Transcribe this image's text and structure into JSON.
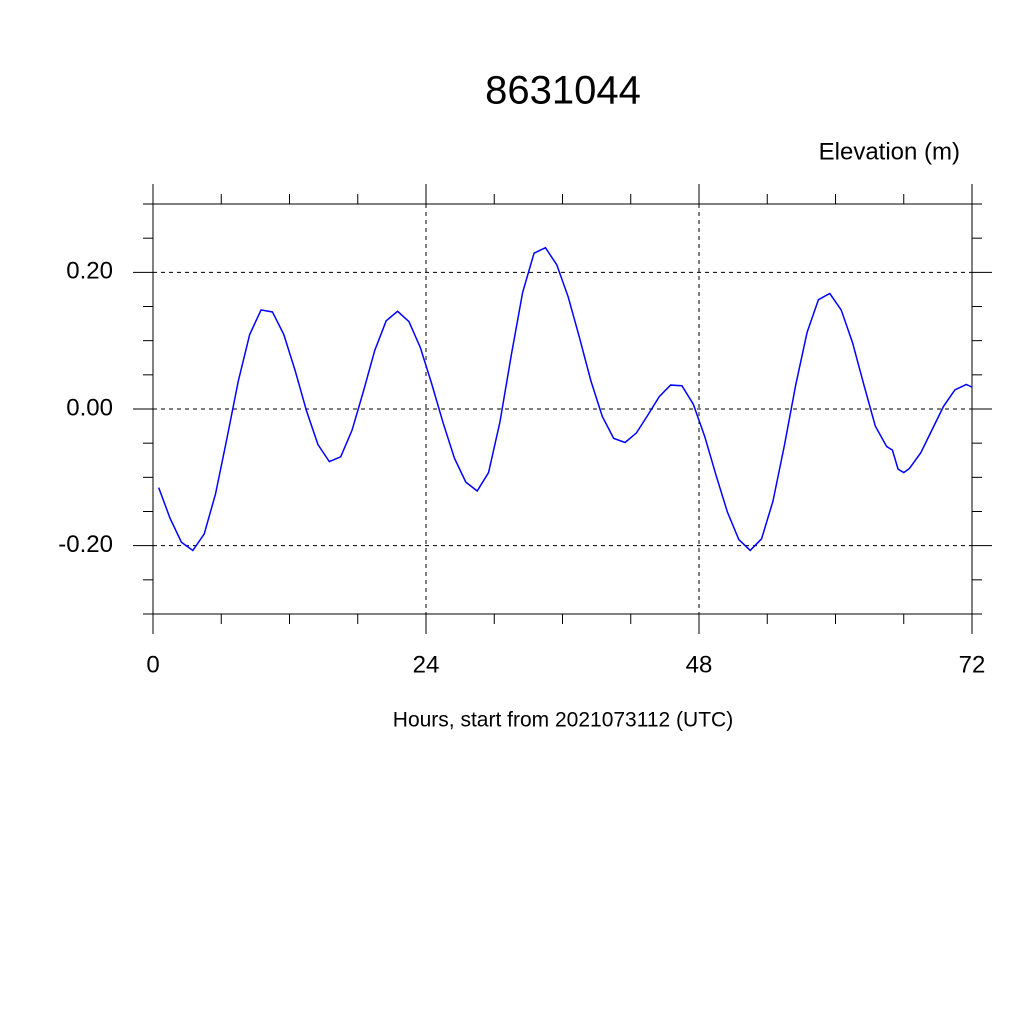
{
  "chart_data": {
    "type": "line",
    "title": "8631044",
    "ylabel": "Elevation (m)",
    "xlabel": "Hours, start from 2021073112 (UTC)",
    "x": [
      0.5,
      1.5,
      2.5,
      3.5,
      4.5,
      5.5,
      6.5,
      7.5,
      8.5,
      9.5,
      10.5,
      11.5,
      12.5,
      13.5,
      14.5,
      15.5,
      16.5,
      17.5,
      18.5,
      19.5,
      20.5,
      21.5,
      22.5,
      23.5,
      24.5,
      25.5,
      26.5,
      27.5,
      28.5,
      29.5,
      30.5,
      31.5,
      32.5,
      33.5,
      34.5,
      35.5,
      36.5,
      37.5,
      38.5,
      39.5,
      40.5,
      41.5,
      42.5,
      43.5,
      44.5,
      45.5,
      46.5,
      47.5,
      48.5,
      49.5,
      50.5,
      51.5,
      52.5,
      53.5,
      54.5,
      55.5,
      56.5,
      57.5,
      58.5,
      59.5,
      60.5,
      61.5,
      62.5,
      63.5,
      64.5,
      65,
      65.5,
      66,
      66.5,
      67.5,
      68.5,
      69.5,
      70.5,
      71.5,
      72
    ],
    "series": [
      {
        "name": "Elevation",
        "color": "#0000ff",
        "values": [
          -0.115,
          -0.16,
          -0.195,
          -0.207,
          -0.183,
          -0.124,
          -0.043,
          0.041,
          0.109,
          0.145,
          0.142,
          0.109,
          0.056,
          -0.003,
          -0.052,
          -0.077,
          -0.07,
          -0.031,
          0.026,
          0.086,
          0.129,
          0.143,
          0.128,
          0.09,
          0.037,
          -0.02,
          -0.072,
          -0.107,
          -0.12,
          -0.093,
          -0.019,
          0.079,
          0.171,
          0.228,
          0.236,
          0.211,
          0.164,
          0.104,
          0.041,
          -0.011,
          -0.043,
          -0.049,
          -0.035,
          -0.009,
          0.018,
          0.035,
          0.034,
          0.007,
          -0.04,
          -0.097,
          -0.151,
          -0.191,
          -0.207,
          -0.19,
          -0.135,
          -0.054,
          0.035,
          0.112,
          0.16,
          0.169,
          0.145,
          0.097,
          0.035,
          -0.025,
          -0.055,
          -0.06,
          -0.088,
          -0.093,
          -0.087,
          -0.064,
          -0.03,
          0.004,
          0.028,
          0.036,
          0.032
        ]
      }
    ],
    "xlim": [
      0,
      72
    ],
    "xticks": [
      0,
      24,
      48,
      72
    ],
    "xminorticks": [
      6,
      12,
      18,
      30,
      36,
      42,
      54,
      60,
      66
    ],
    "ylim": [
      -0.3,
      0.3
    ],
    "yticks": [
      {
        "value": -0.2,
        "label": "-0.20"
      },
      {
        "value": 0,
        "label": "0.00"
      },
      {
        "value": 0.2,
        "label": "0.20"
      }
    ],
    "yminorticks": [
      -0.3,
      -0.25,
      -0.15,
      -0.1,
      -0.05,
      0.05,
      0.1,
      0.15,
      0.25,
      0.3
    ],
    "grid": true
  }
}
